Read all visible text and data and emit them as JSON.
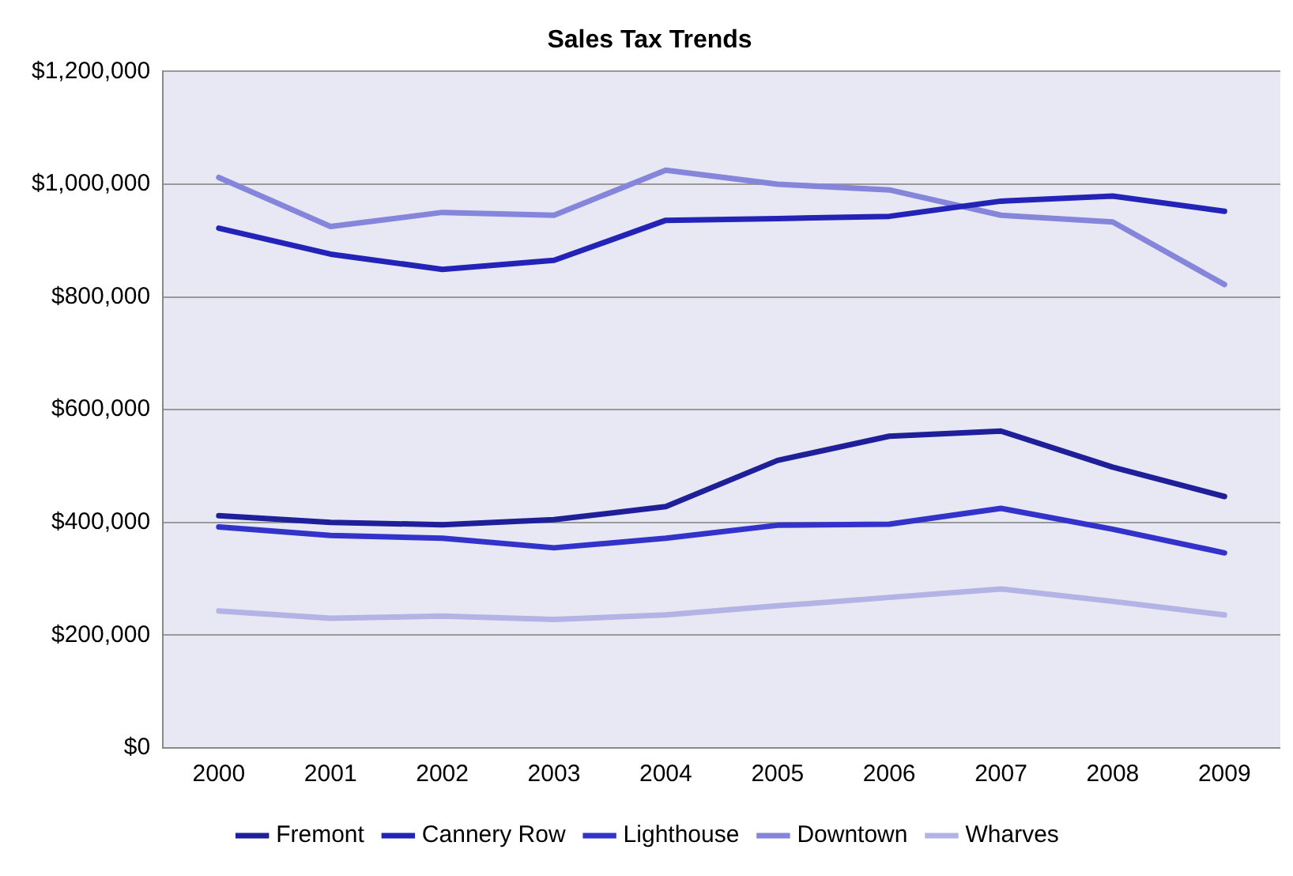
{
  "chart_data": {
    "type": "line",
    "title": "Sales Tax Trends",
    "categories": [
      "2000",
      "2001",
      "2002",
      "2003",
      "2004",
      "2005",
      "2006",
      "2007",
      "2008",
      "2009"
    ],
    "series": [
      {
        "name": "Fremont",
        "color": "#1f1f99",
        "values": [
          412000,
          400000,
          396000,
          405000,
          428000,
          510000,
          553000,
          562000,
          498000,
          446000
        ]
      },
      {
        "name": "Cannery Row",
        "color": "#2323b8",
        "values": [
          922000,
          876000,
          849000,
          865000,
          936000,
          939000,
          943000,
          970000,
          979000,
          952000
        ]
      },
      {
        "name": "Lighthouse",
        "color": "#3333cc",
        "values": [
          392000,
          377000,
          372000,
          355000,
          372000,
          395000,
          397000,
          425000,
          388000,
          346000
        ]
      },
      {
        "name": "Downtown",
        "color": "#8585db",
        "values": [
          1012000,
          925000,
          950000,
          945000,
          1025000,
          1000000,
          990000,
          945000,
          933000,
          822000
        ]
      },
      {
        "name": "Wharves",
        "color": "#b3b3e6",
        "values": [
          243000,
          230000,
          234000,
          228000,
          236000,
          252000,
          267000,
          282000,
          260000,
          236000
        ]
      }
    ],
    "ylim": [
      0,
      1200000
    ],
    "yticks": [
      {
        "value": 0,
        "label": "$0"
      },
      {
        "value": 200000,
        "label": "$200,000"
      },
      {
        "value": 400000,
        "label": "$400,000"
      },
      {
        "value": 600000,
        "label": "$600,000"
      },
      {
        "value": 800000,
        "label": "$800,000"
      },
      {
        "value": 1000000,
        "label": "$1,000,000"
      },
      {
        "value": 1200000,
        "label": "$1,200,000"
      }
    ],
    "grid": "y",
    "legend": "bottom",
    "marker": "none",
    "line_style": "solid"
  }
}
